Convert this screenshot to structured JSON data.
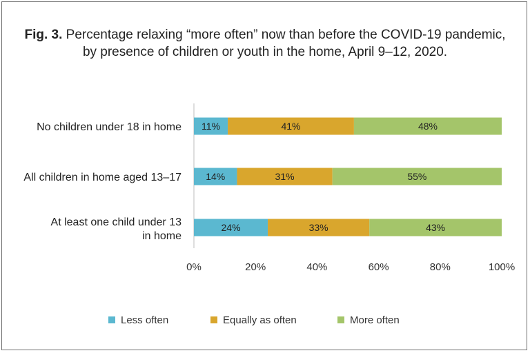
{
  "title": {
    "prefix": "Fig. 3.",
    "line1": "Percentage relaxing “more often” now than before the COVID-19 pandemic,",
    "line2": "by presence of children or youth in the home, April 9–12, 2020."
  },
  "chart_data": {
    "type": "bar",
    "orientation": "horizontal",
    "stacked": true,
    "categories": [
      [
        "No children under 18 in home"
      ],
      [
        "All children in home aged 13–17"
      ],
      [
        "At least one child under 13",
        "in home"
      ]
    ],
    "series": [
      {
        "name": "Less often",
        "color": "#5bb8d0",
        "values": [
          11,
          14,
          24
        ],
        "labels": [
          "11%",
          "14%",
          "24%"
        ]
      },
      {
        "name": "Equally as often",
        "color": "#d9a62d",
        "values": [
          41,
          31,
          33
        ],
        "labels": [
          "41%",
          "31%",
          "33%"
        ]
      },
      {
        "name": "More often",
        "color": "#a4c56a",
        "values": [
          48,
          55,
          43
        ],
        "labels": [
          "48%",
          "55%",
          "43%"
        ]
      }
    ],
    "xlim": [
      0,
      100
    ],
    "xticks": [
      "0%",
      "20%",
      "40%",
      "60%",
      "80%",
      "100%"
    ],
    "grid": false,
    "legend_position": "bottom"
  }
}
